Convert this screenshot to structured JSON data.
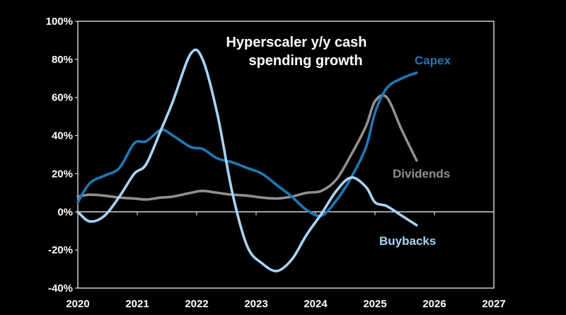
{
  "chart_data": {
    "type": "line",
    "title_lines": [
      "Hyperscaler y/y cash",
      "spending growth"
    ],
    "xlim": [
      2020,
      2027
    ],
    "ylim": [
      -40,
      100
    ],
    "x_ticks": [
      2020,
      2021,
      2022,
      2023,
      2024,
      2025,
      2026,
      2027
    ],
    "y_ticks": [
      -40,
      -20,
      0,
      20,
      40,
      60,
      80,
      100
    ],
    "y_tick_labels": [
      "-40%",
      "-20%",
      "0%",
      "20%",
      "40%",
      "60%",
      "80%",
      "100%"
    ],
    "zero_line": true,
    "series": [
      {
        "name": "Capex",
        "color": "#1f78b4",
        "x": [
          2020.0,
          2020.2,
          2020.45,
          2020.7,
          2020.95,
          2021.15,
          2021.4,
          2021.6,
          2021.9,
          2022.1,
          2022.35,
          2022.6,
          2022.85,
          2023.1,
          2023.35,
          2023.6,
          2023.85,
          2024.1,
          2024.35,
          2024.6,
          2024.85,
          2025.0,
          2025.2,
          2025.45,
          2025.7
        ],
        "y": [
          5,
          15,
          19,
          23,
          36,
          37,
          43,
          40,
          34,
          33,
          28,
          26,
          23,
          20,
          14,
          8,
          1,
          -2,
          6,
          18,
          34,
          52,
          65,
          70,
          73
        ]
      },
      {
        "name": "Dividends",
        "color": "#909090",
        "x": [
          2020.0,
          2020.2,
          2020.45,
          2020.7,
          2020.95,
          2021.15,
          2021.4,
          2021.6,
          2021.9,
          2022.1,
          2022.35,
          2022.6,
          2022.85,
          2023.1,
          2023.35,
          2023.6,
          2023.85,
          2024.1,
          2024.35,
          2024.6,
          2024.85,
          2025.0,
          2025.2,
          2025.45,
          2025.7
        ],
        "y": [
          8,
          9,
          8.5,
          7.5,
          7,
          6.5,
          7.5,
          8,
          10,
          11,
          10,
          9,
          8.5,
          7.5,
          7,
          8,
          10,
          11,
          17,
          30,
          45,
          58,
          60,
          43,
          27
        ]
      },
      {
        "name": "Buybacks",
        "color": "#a8d4f7",
        "x": [
          2020.0,
          2020.2,
          2020.45,
          2020.7,
          2020.95,
          2021.15,
          2021.4,
          2021.6,
          2021.9,
          2022.1,
          2022.35,
          2022.6,
          2022.85,
          2023.1,
          2023.35,
          2023.6,
          2023.85,
          2024.1,
          2024.35,
          2024.6,
          2024.85,
          2025.0,
          2025.2,
          2025.45,
          2025.7
        ],
        "y": [
          0,
          -5,
          -2,
          8,
          20,
          25,
          43,
          58,
          83,
          80,
          51,
          10,
          -18,
          -27,
          -31,
          -25,
          -12,
          -1,
          11,
          18,
          13,
          5,
          3,
          -2,
          -7
        ]
      }
    ]
  }
}
